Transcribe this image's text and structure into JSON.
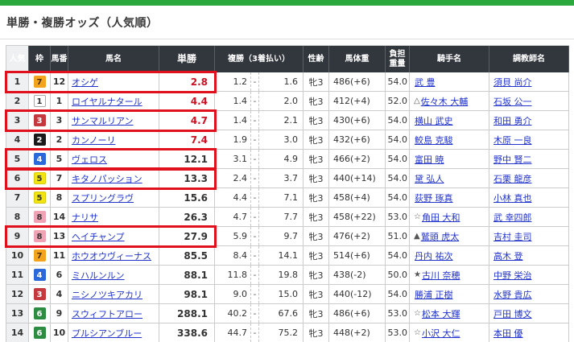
{
  "colors": {
    "accent_green": "#2aa83e",
    "highlight_red": "#e0111c",
    "odds_hot_red": "#cc1122",
    "link_blue": "#2233cc",
    "header_bg": "#32373d"
  },
  "page": {
    "title": "単勝・複勝オッズ（人気順）"
  },
  "table": {
    "headers": [
      "人気",
      "枠",
      "馬番",
      "馬名",
      "単勝",
      "複勝（3着払い）",
      "性齢",
      "馬体重",
      "負担重量",
      "騎手名",
      "調教師名"
    ],
    "place_separator": "-",
    "frame_colors": {
      "1": {
        "bg": "#ffffff",
        "fg": "#333333",
        "border": "#aaaaaa"
      },
      "2": {
        "bg": "#1b1b1b",
        "fg": "#ffffff",
        "border": "#1b1b1b"
      },
      "3": {
        "bg": "#c5383e",
        "fg": "#ffffff",
        "border": "#c5383e"
      },
      "4": {
        "bg": "#2b68d9",
        "fg": "#ffffff",
        "border": "#2b68d9"
      },
      "5": {
        "bg": "#f2e410",
        "fg": "#333333",
        "border": "#d8cb10"
      },
      "6": {
        "bg": "#2e8b42",
        "fg": "#ffffff",
        "border": "#2e8b42"
      },
      "7": {
        "bg": "#f4a41c",
        "fg": "#4a3000",
        "border": "#f4a41c"
      },
      "8": {
        "bg": "#efa3b5",
        "fg": "#333333",
        "border": "#efa3b5"
      }
    },
    "rows": [
      {
        "rank": "1",
        "frame": "7",
        "num": "12",
        "name": "オシゲ",
        "win": "2.8",
        "place_min": "1.2",
        "place_max": "1.6",
        "sex_age": "牝3",
        "weight": "486(+6)",
        "load": "54.0",
        "jockey_mark": "",
        "jockey": "武 豊",
        "trainer": "須貝 尚介",
        "highlighted": true
      },
      {
        "rank": "2",
        "frame": "1",
        "num": "1",
        "name": "ロイヤルナタール",
        "win": "4.4",
        "place_min": "1.4",
        "place_max": "2.0",
        "sex_age": "牝3",
        "weight": "412(+4)",
        "load": "52.0",
        "jockey_mark": "△",
        "jockey": "佐々木 大輔",
        "trainer": "石坂 公一",
        "highlighted": false
      },
      {
        "rank": "3",
        "frame": "3",
        "num": "3",
        "name": "サンマルリアン",
        "win": "4.7",
        "place_min": "1.4",
        "place_max": "2.1",
        "sex_age": "牝3",
        "weight": "430(+6)",
        "load": "54.0",
        "jockey_mark": "",
        "jockey": "横山 武史",
        "trainer": "和田 勇介",
        "highlighted": true
      },
      {
        "rank": "4",
        "frame": "2",
        "num": "2",
        "name": "カンノーリ",
        "win": "7.4",
        "place_min": "1.9",
        "place_max": "3.0",
        "sex_age": "牝3",
        "weight": "432(+6)",
        "load": "54.0",
        "jockey_mark": "",
        "jockey": "鮫島 克駿",
        "trainer": "木原 一良",
        "highlighted": false
      },
      {
        "rank": "5",
        "frame": "4",
        "num": "5",
        "name": "ヴェロス",
        "win": "12.1",
        "place_min": "3.1",
        "place_max": "4.9",
        "sex_age": "牝3",
        "weight": "466(+2)",
        "load": "54.0",
        "jockey_mark": "",
        "jockey": "富田 暁",
        "trainer": "野中 賢二",
        "highlighted": true
      },
      {
        "rank": "6",
        "frame": "5",
        "num": "7",
        "name": "キタノパッション",
        "win": "13.3",
        "place_min": "2.4",
        "place_max": "3.7",
        "sex_age": "牝3",
        "weight": "440(+14)",
        "load": "54.0",
        "jockey_mark": "",
        "jockey": "黛 弘人",
        "trainer": "石栗 龍彦",
        "highlighted": true
      },
      {
        "rank": "7",
        "frame": "5",
        "num": "8",
        "name": "スプリングラヴ",
        "win": "15.6",
        "place_min": "4.4",
        "place_max": "7.1",
        "sex_age": "牝3",
        "weight": "458(+4)",
        "load": "54.0",
        "jockey_mark": "",
        "jockey": "荻野 琢真",
        "trainer": "小林 真也",
        "highlighted": false
      },
      {
        "rank": "8",
        "frame": "8",
        "num": "14",
        "name": "ナリサ",
        "win": "26.3",
        "place_min": "4.7",
        "place_max": "7.7",
        "sex_age": "牝3",
        "weight": "458(+22)",
        "load": "53.0",
        "jockey_mark": "☆",
        "jockey": "角田 大和",
        "trainer": "武 幸四郎",
        "highlighted": false
      },
      {
        "rank": "9",
        "frame": "8",
        "num": "13",
        "name": "ヘイチャンプ",
        "win": "27.9",
        "place_min": "5.9",
        "place_max": "9.7",
        "sex_age": "牝3",
        "weight": "476(+2)",
        "load": "51.0",
        "jockey_mark": "▲",
        "jockey": "鷲頭 虎太",
        "trainer": "吉村 圭司",
        "highlighted": true
      },
      {
        "rank": "10",
        "frame": "7",
        "num": "11",
        "name": "ホウオウヴィーナス",
        "win": "85.5",
        "place_min": "8.4",
        "place_max": "14.1",
        "sex_age": "牝3",
        "weight": "514(+6)",
        "load": "54.0",
        "jockey_mark": "",
        "jockey": "丹内 祐次",
        "trainer": "高木 登",
        "highlighted": false
      },
      {
        "rank": "11",
        "frame": "4",
        "num": "6",
        "name": "ミハルンルン",
        "win": "88.1",
        "place_min": "11.8",
        "place_max": "19.8",
        "sex_age": "牝3",
        "weight": "438(-2)",
        "load": "50.0",
        "jockey_mark": "★",
        "jockey": "古川 奈穂",
        "trainer": "中野 栄治",
        "highlighted": false
      },
      {
        "rank": "12",
        "frame": "3",
        "num": "4",
        "name": "ニシノツキアカリ",
        "win": "98.1",
        "place_min": "9.0",
        "place_max": "15.0",
        "sex_age": "牝3",
        "weight": "440(-12)",
        "load": "54.0",
        "jockey_mark": "",
        "jockey": "勝浦 正樹",
        "trainer": "水野 貴広",
        "highlighted": false
      },
      {
        "rank": "13",
        "frame": "6",
        "num": "9",
        "name": "スウィフトアロー",
        "win": "288.1",
        "place_min": "40.2",
        "place_max": "67.6",
        "sex_age": "牝3",
        "weight": "486(+6)",
        "load": "53.0",
        "jockey_mark": "☆",
        "jockey": "松本 大輝",
        "trainer": "戸田 博文",
        "highlighted": false
      },
      {
        "rank": "14",
        "frame": "6",
        "num": "10",
        "name": "プルシアンブルー",
        "win": "338.6",
        "place_min": "44.7",
        "place_max": "75.2",
        "sex_age": "牝3",
        "weight": "448(+2)",
        "load": "53.0",
        "jockey_mark": "☆",
        "jockey": "小沢 大仁",
        "trainer": "本田 優",
        "highlighted": false
      }
    ]
  }
}
